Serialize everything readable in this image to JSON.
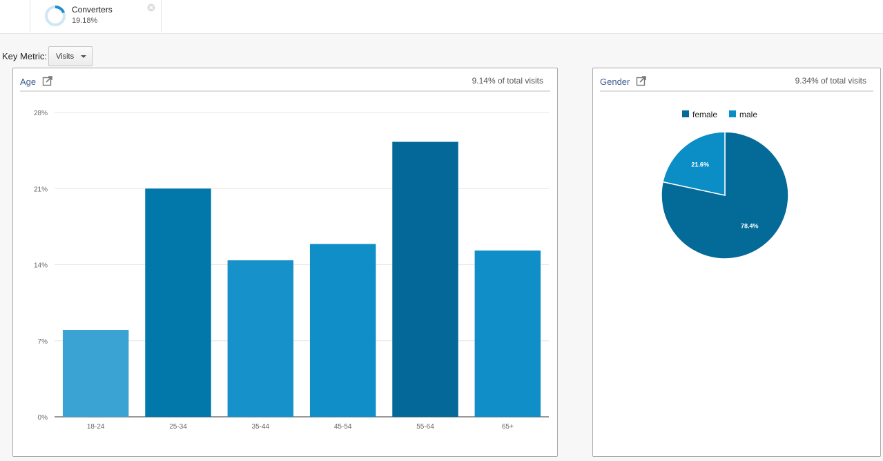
{
  "segment": {
    "name": "Converters",
    "percent_text": "19.18%",
    "percent_value": 0.1918
  },
  "key_metric": {
    "label": "Key Metric:",
    "selected": "Visits"
  },
  "age_panel": {
    "title": "Age",
    "total_text": "9.14% of total visits"
  },
  "gender_panel": {
    "title": "Gender",
    "total_text": "9.34% of total visits"
  },
  "colors": {
    "accent": "#3a5a8c",
    "bar_light": "#3aa3d4",
    "bar_mid": "#0f8ec8",
    "bar_dark": "#0277aa",
    "bar_darkest": "#046998",
    "female": "#046a97",
    "male": "#0a8ec5"
  },
  "chart_data": [
    {
      "type": "bar",
      "categories": [
        "18-24",
        "25-34",
        "35-44",
        "45-54",
        "55-64",
        "65+"
      ],
      "values": [
        8.0,
        21.0,
        14.4,
        15.9,
        25.3,
        15.3
      ],
      "y_ticks": [
        "0%",
        "7%",
        "14%",
        "21%",
        "28%"
      ],
      "ylim": [
        0,
        28
      ],
      "grid": true,
      "bar_colors": [
        "#3aa3d4",
        "#0277aa",
        "#1791ca",
        "#0f8ec8",
        "#046998",
        "#0f8ec8"
      ]
    },
    {
      "type": "pie",
      "labels": [
        "female",
        "male"
      ],
      "values": [
        78.4,
        21.6
      ],
      "value_labels": [
        "78.4%",
        "21.6%"
      ],
      "legend": "top"
    }
  ]
}
